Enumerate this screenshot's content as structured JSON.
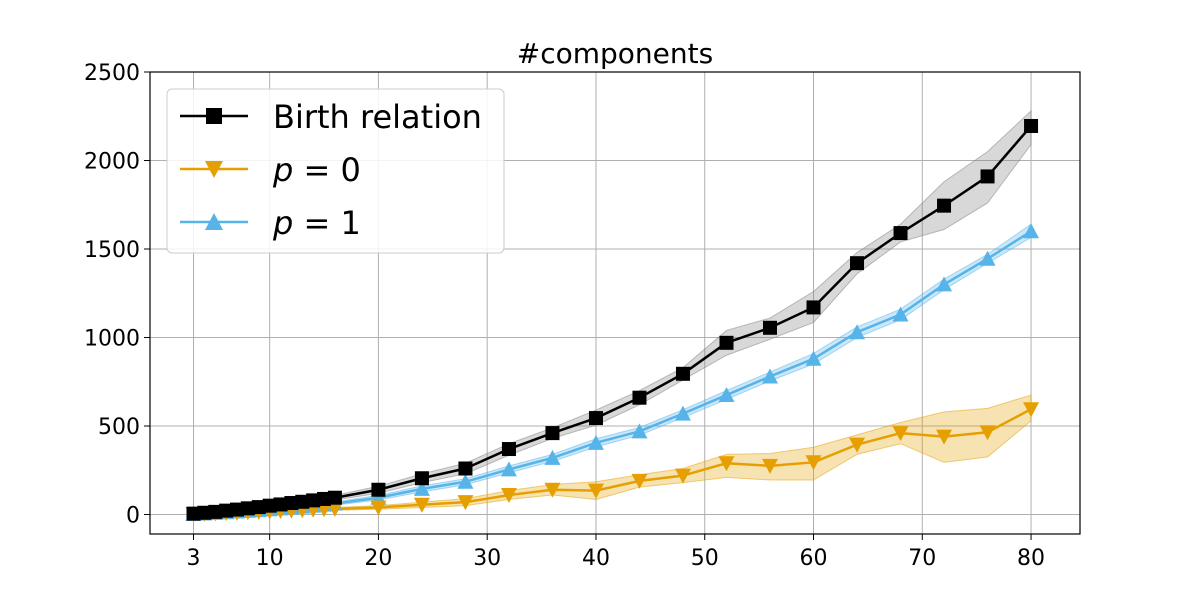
{
  "chart_data": {
    "type": "line",
    "title": "#components",
    "xlabel": "",
    "ylabel": "",
    "xlim": [
      -1,
      84.5
    ],
    "ylim": [
      -110,
      2500
    ],
    "xticks": [
      3,
      10,
      20,
      30,
      40,
      50,
      60,
      70,
      80
    ],
    "yticks": [
      0,
      500,
      1000,
      1500,
      2000,
      2500
    ],
    "grid": true,
    "legend_position": "top-left",
    "series": [
      {
        "name": "Birth relation",
        "color": "#000000",
        "band_color": "#7f7f7f",
        "marker": "square",
        "x": [
          3,
          4,
          5,
          6,
          7,
          8,
          9,
          10,
          11,
          12,
          13,
          14,
          15,
          16,
          20,
          24,
          28,
          32,
          36,
          40,
          44,
          48,
          52,
          56,
          60,
          64,
          68,
          72,
          76,
          80
        ],
        "y": [
          5,
          10,
          15,
          22,
          28,
          35,
          42,
          50,
          57,
          65,
          72,
          80,
          88,
          95,
          140,
          205,
          260,
          370,
          460,
          545,
          660,
          795,
          970,
          1055,
          1170,
          1420,
          1590,
          1745,
          1910,
          2195
        ],
        "lower": [
          3,
          7,
          11,
          17,
          23,
          29,
          35,
          42,
          48,
          55,
          61,
          68,
          75,
          82,
          120,
          180,
          230,
          335,
          430,
          505,
          620,
          760,
          900,
          990,
          1085,
          1360,
          1540,
          1610,
          1760,
          2090
        ],
        "upper": [
          7,
          13,
          19,
          27,
          33,
          41,
          49,
          58,
          66,
          75,
          83,
          92,
          101,
          108,
          160,
          230,
          290,
          400,
          490,
          590,
          700,
          830,
          1040,
          1110,
          1260,
          1480,
          1640,
          1880,
          2050,
          2280
        ]
      },
      {
        "name": "p = 0",
        "color": "#e69f00",
        "band_color": "#e69f00",
        "marker": "triangle-down",
        "x": [
          3,
          4,
          5,
          6,
          7,
          8,
          9,
          10,
          11,
          12,
          13,
          14,
          15,
          16,
          20,
          24,
          28,
          32,
          36,
          40,
          44,
          48,
          52,
          56,
          60,
          64,
          68,
          72,
          76,
          80
        ],
        "y": [
          2,
          4,
          6,
          8,
          10,
          13,
          15,
          17,
          20,
          22,
          25,
          27,
          30,
          32,
          40,
          55,
          70,
          110,
          140,
          135,
          190,
          220,
          290,
          275,
          295,
          395,
          460,
          440,
          465,
          595
        ],
        "lower": [
          1,
          2,
          4,
          5,
          7,
          9,
          11,
          12,
          14,
          16,
          18,
          20,
          22,
          24,
          30,
          40,
          50,
          85,
          110,
          85,
          155,
          180,
          210,
          195,
          195,
          340,
          400,
          295,
          325,
          530
        ],
        "upper": [
          3,
          6,
          8,
          11,
          13,
          17,
          19,
          22,
          26,
          28,
          32,
          34,
          38,
          40,
          50,
          70,
          90,
          135,
          170,
          185,
          225,
          260,
          340,
          345,
          380,
          450,
          520,
          580,
          600,
          675
        ]
      },
      {
        "name": "p = 1",
        "color": "#56b4e9",
        "band_color": "#56b4e9",
        "marker": "triangle-up",
        "x": [
          3,
          4,
          5,
          6,
          7,
          8,
          9,
          10,
          11,
          12,
          13,
          14,
          15,
          16,
          20,
          24,
          28,
          32,
          36,
          40,
          44,
          48,
          52,
          56,
          60,
          64,
          68,
          72,
          76,
          80
        ],
        "y": [
          3,
          6,
          9,
          13,
          17,
          21,
          25,
          30,
          35,
          40,
          45,
          50,
          56,
          62,
          95,
          145,
          185,
          255,
          320,
          405,
          470,
          570,
          675,
          780,
          880,
          1030,
          1130,
          1300,
          1445,
          1600
        ],
        "lower": [
          2,
          4,
          7,
          10,
          14,
          17,
          21,
          25,
          29,
          34,
          38,
          43,
          48,
          53,
          82,
          128,
          168,
          236,
          300,
          382,
          448,
          548,
          650,
          755,
          850,
          1000,
          1100,
          1270,
          1420,
          1565
        ],
        "upper": [
          4,
          8,
          11,
          16,
          20,
          25,
          29,
          35,
          41,
          46,
          52,
          57,
          64,
          71,
          108,
          162,
          202,
          274,
          340,
          428,
          492,
          592,
          700,
          805,
          910,
          1060,
          1160,
          1330,
          1470,
          1640
        ]
      }
    ]
  }
}
